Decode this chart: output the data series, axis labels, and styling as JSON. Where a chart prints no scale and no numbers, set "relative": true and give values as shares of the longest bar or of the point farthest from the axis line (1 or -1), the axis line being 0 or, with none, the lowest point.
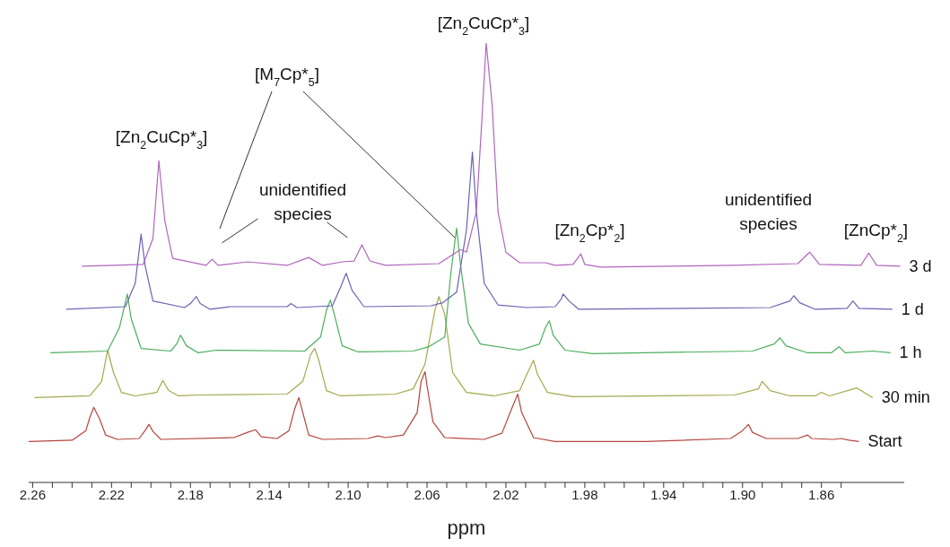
{
  "chart_data": {
    "type": "line",
    "relative": true,
    "xlabel": "ppm",
    "marker": "none",
    "xlim": [
      2.262,
      1.818
    ],
    "xticks": [
      {
        "value": 2.26,
        "label": "2.26"
      },
      {
        "value": 2.25,
        "label": null
      },
      {
        "value": 2.24,
        "label": null
      },
      {
        "value": 2.23,
        "label": null
      },
      2.22,
      {
        "value": 2.21,
        "label": null
      },
      {
        "value": 2.2,
        "label": null
      },
      {
        "value": 2.19,
        "label": null
      },
      2.18,
      {
        "value": 2.17,
        "label": null
      },
      {
        "value": 2.16,
        "label": null
      },
      {
        "value": 2.15,
        "label": null
      },
      2.14,
      {
        "value": 2.13,
        "label": null
      },
      {
        "value": 2.12,
        "label": null
      },
      {
        "value": 2.11,
        "label": null
      },
      {
        "value": 2.1,
        "label": "2.10"
      },
      {
        "value": 2.09,
        "label": null
      },
      {
        "value": 2.08,
        "label": null
      },
      {
        "value": 2.07,
        "label": null
      },
      2.06,
      {
        "value": 2.05,
        "label": null
      },
      {
        "value": 2.04,
        "label": null
      },
      {
        "value": 2.03,
        "label": null
      },
      2.02,
      {
        "value": 2.01,
        "label": null
      },
      {
        "value": 2.0,
        "label": null
      },
      {
        "value": 1.99,
        "label": null
      },
      1.98,
      {
        "value": 1.97,
        "label": null
      },
      {
        "value": 1.96,
        "label": null
      },
      {
        "value": 1.95,
        "label": null
      },
      1.94,
      {
        "value": 1.93,
        "label": null
      },
      {
        "value": 1.92,
        "label": null
      },
      {
        "value": 1.91,
        "label": null
      },
      {
        "value": 1.9,
        "label": "1.90"
      },
      {
        "value": 1.89,
        "label": null
      },
      {
        "value": 1.88,
        "label": null
      },
      {
        "value": 1.87,
        "label": null
      },
      1.86,
      {
        "value": 1.85,
        "label": null
      }
    ],
    "series": [
      {
        "name": "Start",
        "color": "#b5453f",
        "x": [
          2.262,
          2.24,
          2.233,
          2.231,
          2.229,
          2.226,
          2.223,
          2.217,
          2.206,
          2.203,
          2.201,
          2.199,
          2.195,
          2.158,
          2.151,
          2.147,
          2.144,
          2.136,
          2.13,
          2.127,
          2.125,
          2.123,
          2.12,
          2.113,
          2.09,
          2.085,
          2.081,
          2.072,
          2.065,
          2.063,
          2.061,
          2.06,
          2.057,
          2.051,
          2.031,
          2.022,
          2.017,
          2.014,
          2.012,
          2.006,
          1.995,
          1.949,
          1.906,
          1.9,
          1.897,
          1.895,
          1.888,
          1.872,
          1.867,
          1.865,
          1.854,
          1.85,
          1.846,
          1.841
        ],
        "values": [
          0.093,
          0.096,
          0.118,
          0.148,
          0.171,
          0.144,
          0.108,
          0.098,
          0.1,
          0.118,
          0.132,
          0.116,
          0.098,
          0.102,
          0.114,
          0.12,
          0.104,
          0.1,
          0.118,
          0.169,
          0.193,
          0.159,
          0.108,
          0.098,
          0.1,
          0.106,
          0.102,
          0.108,
          0.159,
          0.23,
          0.252,
          0.22,
          0.138,
          0.102,
          0.098,
          0.112,
          0.169,
          0.201,
          0.159,
          0.102,
          0.093,
          0.093,
          0.1,
          0.118,
          0.132,
          0.114,
          0.1,
          0.1,
          0.108,
          0.1,
          0.098,
          0.1,
          0.096,
          0.093
        ]
      },
      {
        "name": "30 min",
        "color": "#a5a84c",
        "x": [
          2.259,
          2.231,
          2.225,
          2.222,
          2.219,
          2.215,
          2.208,
          2.197,
          2.194,
          2.191,
          2.186,
          2.176,
          2.131,
          2.123,
          2.119,
          2.117,
          2.115,
          2.111,
          2.104,
          2.076,
          2.067,
          2.061,
          2.056,
          2.054,
          2.051,
          2.047,
          2.04,
          2.026,
          2.013,
          2.009,
          2.006,
          2.004,
          1.999,
          1.986,
          1.904,
          1.892,
          1.89,
          1.886,
          1.876,
          1.863,
          1.86,
          1.856,
          1.842,
          1.834
        ],
        "values": [
          0.193,
          0.197,
          0.23,
          0.301,
          0.25,
          0.205,
          0.197,
          0.205,
          0.232,
          0.209,
          0.197,
          0.199,
          0.201,
          0.23,
          0.291,
          0.305,
          0.28,
          0.209,
          0.197,
          0.201,
          0.213,
          0.27,
          0.392,
          0.423,
          0.382,
          0.25,
          0.205,
          0.197,
          0.209,
          0.25,
          0.278,
          0.246,
          0.205,
          0.195,
          0.199,
          0.213,
          0.23,
          0.209,
          0.197,
          0.197,
          0.205,
          0.197,
          0.215,
          0.193
        ]
      },
      {
        "name": "1 h",
        "color": "#4cae5c",
        "x": [
          2.251,
          2.222,
          2.216,
          2.212,
          2.21,
          2.205,
          2.19,
          2.187,
          2.185,
          2.182,
          2.176,
          2.167,
          2.122,
          2.114,
          2.111,
          2.109,
          2.107,
          2.103,
          2.095,
          2.067,
          2.059,
          2.051,
          2.048,
          2.045,
          2.043,
          2.039,
          2.033,
          2.013,
          2.003,
          2.0,
          1.998,
          1.996,
          1.99,
          1.976,
          1.895,
          1.884,
          1.881,
          1.878,
          1.867,
          1.855,
          1.851,
          1.848,
          1.834,
          1.825
        ],
        "values": [
          0.295,
          0.299,
          0.352,
          0.429,
          0.372,
          0.305,
          0.299,
          0.315,
          0.335,
          0.311,
          0.295,
          0.301,
          0.299,
          0.331,
          0.392,
          0.415,
          0.382,
          0.311,
          0.297,
          0.299,
          0.309,
          0.331,
          0.474,
          0.579,
          0.494,
          0.362,
          0.315,
          0.301,
          0.315,
          0.352,
          0.368,
          0.335,
          0.301,
          0.293,
          0.299,
          0.315,
          0.329,
          0.311,
          0.295,
          0.295,
          0.309,
          0.295,
          0.299,
          0.295
        ]
      },
      {
        "name": "1 d",
        "color": "#6a62b4",
        "x": [
          2.243,
          2.213,
          2.208,
          2.205,
          2.203,
          2.199,
          2.183,
          2.18,
          2.177,
          2.175,
          2.17,
          2.16,
          2.131,
          2.129,
          2.126,
          2.108,
          2.104,
          2.101,
          2.098,
          2.092,
          2.058,
          2.052,
          2.045,
          2.04,
          2.037,
          2.035,
          2.031,
          2.024,
          2.009,
          1.995,
          1.992,
          1.991,
          1.988,
          1.983,
          1.886,
          1.876,
          1.874,
          1.871,
          1.863,
          1.847,
          1.844,
          1.841,
          1.824
        ],
        "values": [
          0.394,
          0.4,
          0.453,
          0.565,
          0.494,
          0.413,
          0.398,
          0.407,
          0.423,
          0.407,
          0.394,
          0.4,
          0.4,
          0.407,
          0.398,
          0.402,
          0.443,
          0.476,
          0.437,
          0.4,
          0.402,
          0.409,
          0.433,
          0.575,
          0.752,
          0.616,
          0.453,
          0.404,
          0.398,
          0.4,
          0.417,
          0.429,
          0.413,
          0.394,
          0.398,
          0.413,
          0.425,
          0.409,
          0.394,
          0.396,
          0.413,
          0.396,
          0.394
        ]
      },
      {
        "name": "3 d",
        "color": "#b066bd",
        "x": [
          2.235,
          2.204,
          2.199,
          2.196,
          2.193,
          2.189,
          2.172,
          2.169,
          2.166,
          2.151,
          2.131,
          2.12,
          2.113,
          2.103,
          2.097,
          2.093,
          2.089,
          2.081,
          2.054,
          2.043,
          2.04,
          2.035,
          2.032,
          2.03,
          2.027,
          2.024,
          2.02,
          2.013,
          2.0,
          1.995,
          1.986,
          1.982,
          1.98,
          1.972,
          1.905,
          1.872,
          1.866,
          1.861,
          1.84,
          1.836,
          1.832,
          1.82
        ],
        "values": [
          0.492,
          0.496,
          0.555,
          0.732,
          0.596,
          0.51,
          0.494,
          0.508,
          0.494,
          0.502,
          0.494,
          0.512,
          0.494,
          0.502,
          0.504,
          0.541,
          0.504,
          0.494,
          0.498,
          0.53,
          0.524,
          0.616,
          0.839,
          1,
          0.86,
          0.616,
          0.524,
          0.5,
          0.5,
          0.494,
          0.496,
          0.52,
          0.496,
          0.49,
          0.494,
          0.498,
          0.524,
          0.496,
          0.494,
          0.522,
          0.494,
          0.492
        ]
      }
    ],
    "annotations": [
      {
        "text": "[Zn$_{2}$CuCp*$_{3}$]",
        "x": 2.196,
        "y": 0.732
      },
      "[M$_{7}$Cp*$_{5}$]",
      {
        "text": "unidentified species",
        "x": 2.093,
        "y": 0.541
      },
      {
        "text": "[Zn$_{2}$CuCp*$_{3}$]",
        "x": 2.03,
        "y": 1
      },
      {
        "text": "[Zn$_{2}$Cp*$_{2}$]",
        "x": 1.982,
        "y": 0.52
      },
      {
        "text": "unidentified species",
        "x": 1.866,
        "y": 0.524
      },
      {
        "text": "[ZnCp*$_{2}$]",
        "x": 1.836,
        "y": 0.522
      }
    ]
  }
}
